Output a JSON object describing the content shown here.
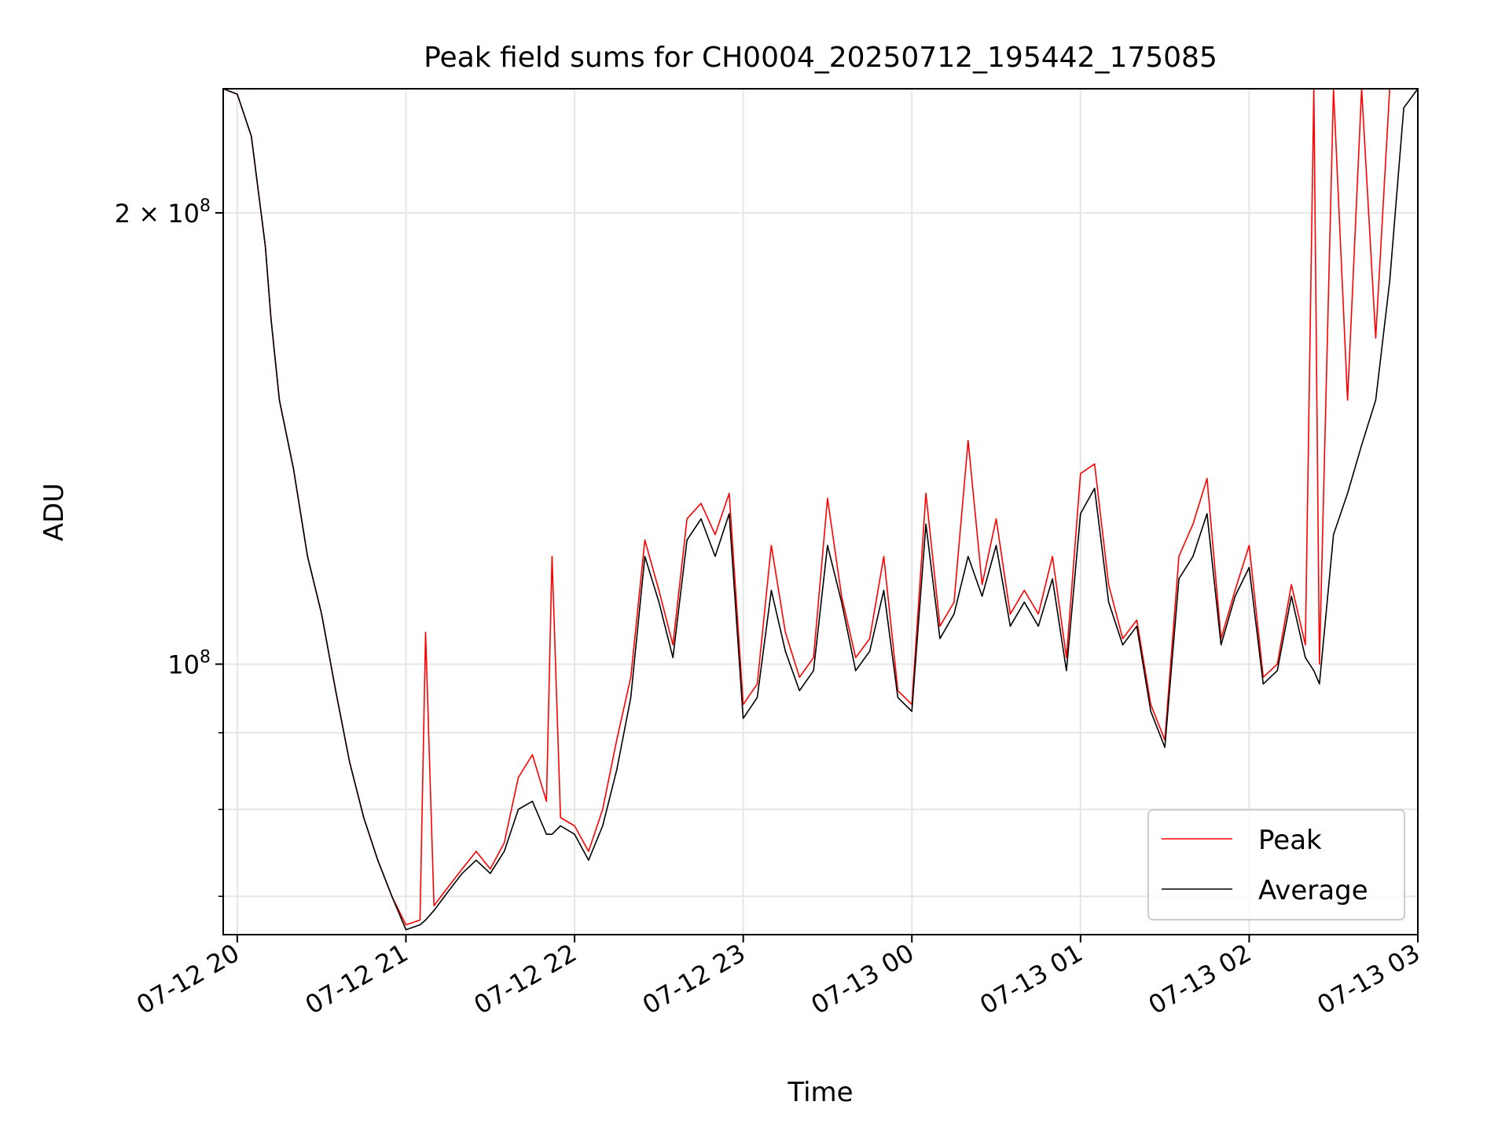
{
  "chart_data": {
    "type": "line",
    "title": "Peak field sums for CH0004_20250712_195442_175085",
    "xlabel": "Time",
    "ylabel": "ADU",
    "x_type": "time",
    "xlim": [
      "2025-07-12T19:55:00",
      "2025-07-13T03:00:00"
    ],
    "ylim": [
      66000000,
      242000000
    ],
    "y_scale": "log",
    "grid": true,
    "legend": "lower right",
    "x_ticks": [
      {
        "label": "07-12 20",
        "value": "2025-07-12T20:00:00"
      },
      {
        "label": "07-12 21",
        "value": "2025-07-12T21:00:00"
      },
      {
        "label": "07-12 22",
        "value": "2025-07-12T22:00:00"
      },
      {
        "label": "07-12 23",
        "value": "2025-07-12T23:00:00"
      },
      {
        "label": "07-13 00",
        "value": "2025-07-13T00:00:00"
      },
      {
        "label": "07-13 01",
        "value": "2025-07-13T01:00:00"
      },
      {
        "label": "07-13 02",
        "value": "2025-07-13T02:00:00"
      },
      {
        "label": "07-13 03",
        "value": "2025-07-13T03:00:00"
      }
    ],
    "y_ticks_major": [
      {
        "value": 200000000,
        "mantissa": "2",
        "times": "×",
        "base": "10",
        "exp": "8"
      },
      {
        "value": 100000000,
        "mantissa": "",
        "times": "",
        "base": "10",
        "exp": "8"
      }
    ],
    "y_ticks_minor": [
      70000000,
      80000000,
      90000000
    ],
    "series": [
      {
        "name": "Peak",
        "color": "#ff0000",
        "x": [
          "2025-07-12T19:55:00",
          "2025-07-12T20:00:00",
          "2025-07-12T20:05:00",
          "2025-07-12T20:10:00",
          "2025-07-12T20:12:00",
          "2025-07-12T20:15:00",
          "2025-07-12T20:20:00",
          "2025-07-12T20:25:00",
          "2025-07-12T20:30:00",
          "2025-07-12T20:35:00",
          "2025-07-12T20:40:00",
          "2025-07-12T20:45:00",
          "2025-07-12T20:50:00",
          "2025-07-12T20:55:00",
          "2025-07-12T21:00:00",
          "2025-07-12T21:05:00",
          "2025-07-12T21:07:00",
          "2025-07-12T21:10:00",
          "2025-07-12T21:15:00",
          "2025-07-12T21:20:00",
          "2025-07-12T21:25:00",
          "2025-07-12T21:30:00",
          "2025-07-12T21:35:00",
          "2025-07-12T21:40:00",
          "2025-07-12T21:45:00",
          "2025-07-12T21:50:00",
          "2025-07-12T21:52:00",
          "2025-07-12T21:55:00",
          "2025-07-12T22:00:00",
          "2025-07-12T22:05:00",
          "2025-07-12T22:10:00",
          "2025-07-12T22:15:00",
          "2025-07-12T22:20:00",
          "2025-07-12T22:25:00",
          "2025-07-12T22:30:00",
          "2025-07-12T22:35:00",
          "2025-07-12T22:40:00",
          "2025-07-12T22:45:00",
          "2025-07-12T22:50:00",
          "2025-07-12T22:55:00",
          "2025-07-12T23:00:00",
          "2025-07-12T23:05:00",
          "2025-07-12T23:10:00",
          "2025-07-12T23:15:00",
          "2025-07-12T23:20:00",
          "2025-07-12T23:25:00",
          "2025-07-12T23:30:00",
          "2025-07-12T23:35:00",
          "2025-07-12T23:40:00",
          "2025-07-12T23:45:00",
          "2025-07-12T23:50:00",
          "2025-07-12T23:55:00",
          "2025-07-13T00:00:00",
          "2025-07-13T00:05:00",
          "2025-07-13T00:10:00",
          "2025-07-13T00:15:00",
          "2025-07-13T00:20:00",
          "2025-07-13T00:25:00",
          "2025-07-13T00:30:00",
          "2025-07-13T00:35:00",
          "2025-07-13T00:40:00",
          "2025-07-13T00:45:00",
          "2025-07-13T00:50:00",
          "2025-07-13T00:55:00",
          "2025-07-13T01:00:00",
          "2025-07-13T01:05:00",
          "2025-07-13T01:10:00",
          "2025-07-13T01:15:00",
          "2025-07-13T01:20:00",
          "2025-07-13T01:25:00",
          "2025-07-13T01:30:00",
          "2025-07-13T01:35:00",
          "2025-07-13T01:40:00",
          "2025-07-13T01:45:00",
          "2025-07-13T01:50:00",
          "2025-07-13T01:55:00",
          "2025-07-13T02:00:00",
          "2025-07-13T02:05:00",
          "2025-07-13T02:10:00",
          "2025-07-13T02:15:00",
          "2025-07-13T02:20:00",
          "2025-07-13T02:23:00",
          "2025-07-13T02:25:00",
          "2025-07-13T02:30:00",
          "2025-07-13T02:35:00",
          "2025-07-13T02:40:00",
          "2025-07-13T02:45:00",
          "2025-07-13T02:50:00",
          "2025-07-13T02:55:00",
          "2025-07-13T03:00:00"
        ],
        "y": [
          242000000,
          240000000,
          225000000,
          190000000,
          170000000,
          150000000,
          135000000,
          118000000,
          108000000,
          96000000,
          86000000,
          79000000,
          74000000,
          70000000,
          67000000,
          67500000,
          105000000,
          69000000,
          71000000,
          73000000,
          75000000,
          73000000,
          76000000,
          84000000,
          87000000,
          81000000,
          118000000,
          79000000,
          78000000,
          75000000,
          80000000,
          89000000,
          98000000,
          121000000,
          112000000,
          103000000,
          125000000,
          128000000,
          122000000,
          130000000,
          94000000,
          97000000,
          120000000,
          105000000,
          98000000,
          101000000,
          129000000,
          111000000,
          101000000,
          104000000,
          118000000,
          96000000,
          94000000,
          130000000,
          106000000,
          110000000,
          141000000,
          113000000,
          125000000,
          108000000,
          112000000,
          108000000,
          118000000,
          101000000,
          134000000,
          136000000,
          113000000,
          104000000,
          107000000,
          94000000,
          89000000,
          118000000,
          124000000,
          133000000,
          104000000,
          112000000,
          120000000,
          98000000,
          100000000,
          113000000,
          103000000,
          242000000,
          100000000,
          242000000,
          150000000,
          242000000,
          165000000,
          242000000,
          242000000,
          242000000
        ]
      },
      {
        "name": "Average",
        "color": "#000000",
        "x": [
          "2025-07-12T19:55:00",
          "2025-07-12T20:00:00",
          "2025-07-12T20:05:00",
          "2025-07-12T20:10:00",
          "2025-07-12T20:12:00",
          "2025-07-12T20:15:00",
          "2025-07-12T20:20:00",
          "2025-07-12T20:25:00",
          "2025-07-12T20:30:00",
          "2025-07-12T20:35:00",
          "2025-07-12T20:40:00",
          "2025-07-12T20:45:00",
          "2025-07-12T20:50:00",
          "2025-07-12T20:55:00",
          "2025-07-12T21:00:00",
          "2025-07-12T21:05:00",
          "2025-07-12T21:07:00",
          "2025-07-12T21:10:00",
          "2025-07-12T21:15:00",
          "2025-07-12T21:20:00",
          "2025-07-12T21:25:00",
          "2025-07-12T21:30:00",
          "2025-07-12T21:35:00",
          "2025-07-12T21:40:00",
          "2025-07-12T21:45:00",
          "2025-07-12T21:50:00",
          "2025-07-12T21:52:00",
          "2025-07-12T21:55:00",
          "2025-07-12T22:00:00",
          "2025-07-12T22:05:00",
          "2025-07-12T22:10:00",
          "2025-07-12T22:15:00",
          "2025-07-12T22:20:00",
          "2025-07-12T22:25:00",
          "2025-07-12T22:30:00",
          "2025-07-12T22:35:00",
          "2025-07-12T22:40:00",
          "2025-07-12T22:45:00",
          "2025-07-12T22:50:00",
          "2025-07-12T22:55:00",
          "2025-07-12T23:00:00",
          "2025-07-12T23:05:00",
          "2025-07-12T23:10:00",
          "2025-07-12T23:15:00",
          "2025-07-12T23:20:00",
          "2025-07-12T23:25:00",
          "2025-07-12T23:30:00",
          "2025-07-12T23:35:00",
          "2025-07-12T23:40:00",
          "2025-07-12T23:45:00",
          "2025-07-12T23:50:00",
          "2025-07-12T23:55:00",
          "2025-07-13T00:00:00",
          "2025-07-13T00:05:00",
          "2025-07-13T00:10:00",
          "2025-07-13T00:15:00",
          "2025-07-13T00:20:00",
          "2025-07-13T00:25:00",
          "2025-07-13T00:30:00",
          "2025-07-13T00:35:00",
          "2025-07-13T00:40:00",
          "2025-07-13T00:45:00",
          "2025-07-13T00:50:00",
          "2025-07-13T00:55:00",
          "2025-07-13T01:00:00",
          "2025-07-13T01:05:00",
          "2025-07-13T01:10:00",
          "2025-07-13T01:15:00",
          "2025-07-13T01:20:00",
          "2025-07-13T01:25:00",
          "2025-07-13T01:30:00",
          "2025-07-13T01:35:00",
          "2025-07-13T01:40:00",
          "2025-07-13T01:45:00",
          "2025-07-13T01:50:00",
          "2025-07-13T01:55:00",
          "2025-07-13T02:00:00",
          "2025-07-13T02:05:00",
          "2025-07-13T02:10:00",
          "2025-07-13T02:15:00",
          "2025-07-13T02:20:00",
          "2025-07-13T02:23:00",
          "2025-07-13T02:25:00",
          "2025-07-13T02:30:00",
          "2025-07-13T02:35:00",
          "2025-07-13T02:40:00",
          "2025-07-13T02:45:00",
          "2025-07-13T02:50:00",
          "2025-07-13T02:55:00",
          "2025-07-13T03:00:00"
        ],
        "y": [
          242000000,
          240000000,
          225000000,
          190000000,
          170000000,
          150000000,
          135000000,
          118000000,
          108000000,
          96000000,
          86000000,
          79000000,
          74000000,
          70000000,
          66500000,
          67000000,
          67500000,
          68500000,
          70500000,
          72500000,
          74000000,
          72500000,
          75000000,
          80000000,
          81000000,
          77000000,
          77000000,
          78000000,
          77000000,
          74000000,
          78000000,
          85000000,
          95000000,
          118000000,
          110000000,
          101000000,
          121000000,
          125000000,
          118000000,
          126000000,
          92000000,
          95000000,
          112000000,
          102000000,
          96000000,
          99000000,
          120000000,
          110000000,
          99000000,
          102000000,
          112000000,
          95000000,
          93000000,
          124000000,
          104000000,
          108000000,
          118000000,
          111000000,
          120000000,
          106000000,
          110000000,
          106000000,
          114000000,
          99000000,
          126000000,
          131000000,
          110000000,
          103000000,
          106000000,
          93000000,
          88000000,
          114000000,
          118000000,
          126000000,
          103000000,
          111000000,
          116000000,
          97000000,
          99000000,
          111000000,
          101000000,
          99000000,
          97000000,
          122000000,
          130000000,
          140000000,
          150000000,
          180000000,
          235000000,
          242000000
        ]
      }
    ]
  }
}
